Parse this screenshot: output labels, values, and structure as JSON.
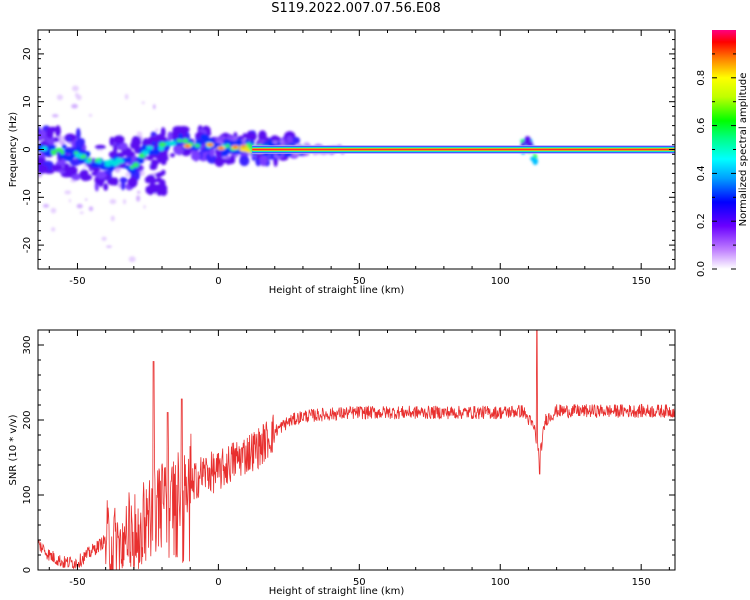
{
  "title": "S119.2022.007.07.56.E08",
  "chart_data": [
    {
      "type": "heatmap",
      "xlabel": "Height of straight line (km)",
      "ylabel": "Frequency (Hz)",
      "xlim": [
        -64,
        162
      ],
      "ylim": [
        -25,
        25
      ],
      "xticks": [
        -50,
        0,
        50,
        100,
        150
      ],
      "yticks": [
        -20,
        -10,
        0,
        10,
        20
      ],
      "colorbar": {
        "label": "Normalized spectral amplitude",
        "range": [
          0,
          1
        ],
        "ticks": [
          "0.0",
          "0.2",
          "0.4",
          "0.6",
          "0.8"
        ]
      },
      "ridge": {
        "x": [
          -62,
          -55,
          -50,
          -45,
          -40,
          -35,
          -30,
          -27,
          -24,
          -20,
          -15,
          -10,
          -5,
          0,
          5,
          10,
          20,
          30,
          100,
          108,
          110,
          112,
          162
        ],
        "y": [
          0,
          -0.5,
          -1,
          -2.5,
          -3,
          -2.5,
          -3.5,
          -1,
          0,
          0.5,
          2,
          1,
          1.5,
          0.3,
          0.5,
          0.5,
          0.1,
          0,
          0,
          0.5,
          1,
          -1,
          0
        ]
      }
    },
    {
      "type": "line",
      "xlabel": "Height of straight line (km)",
      "ylabel": "SNR (10 * v/v)",
      "xlim": [
        -64,
        162
      ],
      "ylim": [
        0,
        320
      ],
      "xticks": [
        -50,
        0,
        50,
        100,
        150
      ],
      "yticks": [
        0,
        100,
        200,
        300
      ],
      "color": "#e8302f",
      "trend": {
        "x": [
          -64,
          -60,
          -55,
          -50,
          -45,
          -40,
          -35,
          -30,
          -25,
          -20,
          -15,
          -10,
          -5,
          0,
          5,
          10,
          15,
          20,
          25,
          30,
          40,
          50,
          60,
          80,
          100,
          108,
          112,
          114,
          116,
          120,
          140,
          162
        ],
        "y": [
          35,
          20,
          10,
          10,
          25,
          40,
          30,
          45,
          70,
          85,
          100,
          115,
          130,
          130,
          145,
          155,
          165,
          185,
          198,
          205,
          208,
          210,
          210,
          210,
          210,
          212,
          190,
          150,
          200,
          212,
          212,
          212
        ]
      },
      "spikes": [
        {
          "x": -23,
          "y": 278
        },
        {
          "x": -18,
          "y": 210
        },
        {
          "x": -13,
          "y": 228
        },
        {
          "x": 113,
          "y": 325
        },
        {
          "x": 114,
          "y": 128
        }
      ]
    }
  ]
}
